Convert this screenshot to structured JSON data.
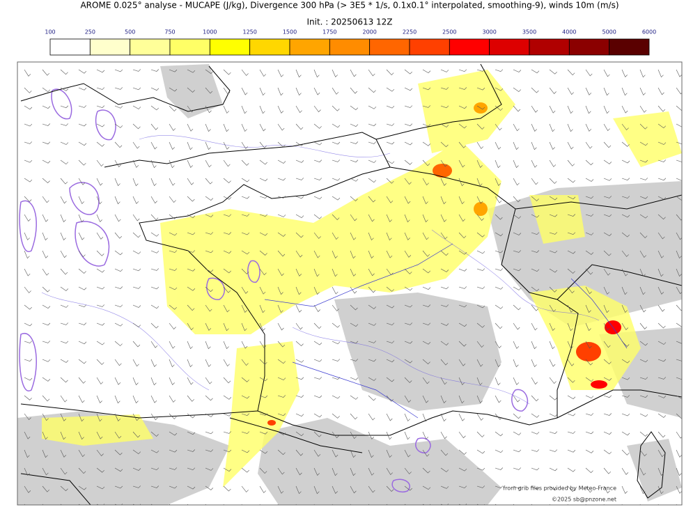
{
  "header": {
    "title": "AROME 0.025° analyse - MUCAPE (J/kg), Divergence 300 hPa (> 3E5 * 1/s, 0.1x0.1° interpolated, smoothing-9), winds 10m (m/s)",
    "subtitle": "Init. : 20250613 12Z"
  },
  "colorbar": {
    "ticks": [
      100,
      250,
      500,
      750,
      1000,
      1250,
      1500,
      1750,
      2000,
      2250,
      2500,
      3000,
      3500,
      4000,
      5000,
      6000
    ],
    "colors": [
      "#ffffff",
      "#ffffcc",
      "#ffff99",
      "#ffff66",
      "#ffff00",
      "#ffd700",
      "#ffa500",
      "#ff8c00",
      "#ff6600",
      "#ff4000",
      "#ff0000",
      "#dd0000",
      "#b00000",
      "#8b0000",
      "#5a0000"
    ]
  },
  "map": {
    "credit": "from grib files provided by Meteo-France",
    "copyright": "©2025 sb@pnzone.net"
  }
}
